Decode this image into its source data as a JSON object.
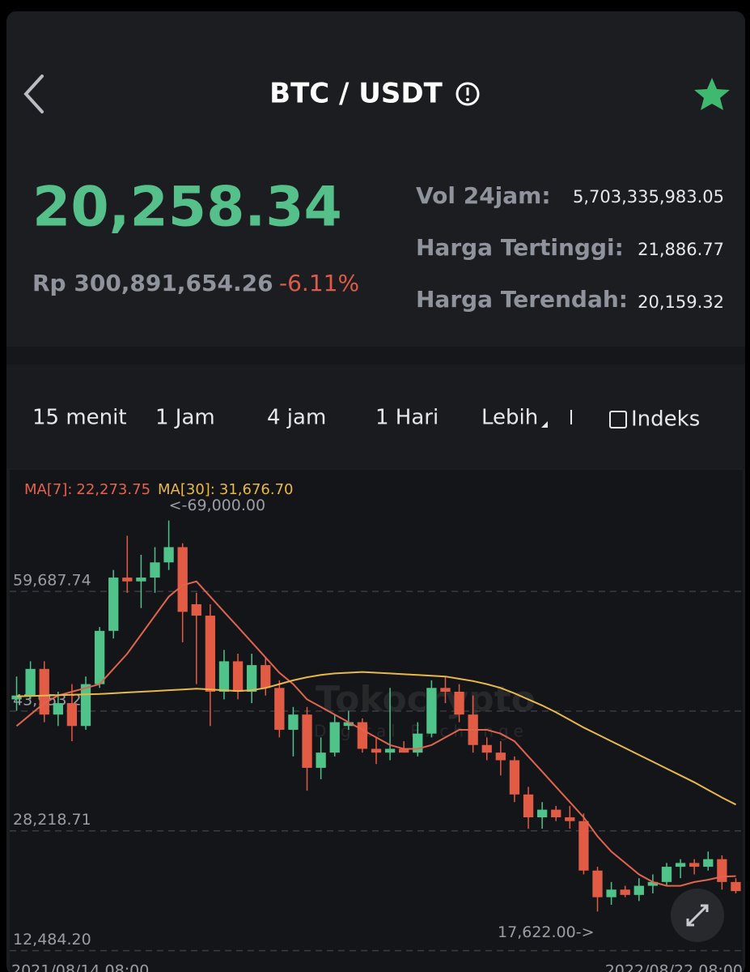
{
  "header": {
    "title": "BTC / USDT"
  },
  "ticker": {
    "price": "20,258.34",
    "fiat": "Rp 300,891,654.26",
    "change": "-6.11%",
    "stats": [
      {
        "label": "Vol 24jam:",
        "value": "5,703,335,983.05"
      },
      {
        "label": "Harga Tertinggi:",
        "value": "21,886.77"
      },
      {
        "label": "Harga Terendah:",
        "value": "20,159.32"
      }
    ]
  },
  "tabs": [
    "15 menit",
    "1 Jam",
    "4 jam",
    "1 Hari",
    "Lebih",
    "Indeks"
  ],
  "chart_data": {
    "type": "candlestick",
    "watermark": {
      "name": "Tokocrypto",
      "tagline": "Digital Exchange"
    },
    "up_color": "#4fc38a",
    "down_color": "#e25b45",
    "categories": [
      "2021/08/14 08:00",
      null,
      null,
      null,
      null,
      null,
      null,
      null,
      null,
      null,
      null,
      null,
      null,
      null,
      null,
      null,
      null,
      null,
      null,
      null,
      null,
      null,
      null,
      null,
      null,
      null,
      null,
      null,
      null,
      null,
      null,
      null,
      null,
      null,
      null,
      null,
      null,
      null,
      null,
      null,
      null,
      null,
      null,
      null,
      null,
      null,
      null,
      null,
      null,
      null,
      null,
      null,
      "2022/08/22 08:00"
    ],
    "open": [
      45500,
      46000,
      49500,
      43500,
      45000,
      42000,
      47500,
      54500,
      61500,
      61000,
      61500,
      63500,
      65500,
      58000,
      56500,
      46500,
      50500,
      46500,
      50000,
      47000,
      41500,
      43500,
      36500,
      38500,
      42000,
      42500,
      39000,
      38500,
      39000,
      38500,
      41000,
      47000,
      46500,
      43500,
      39500,
      38500,
      37500,
      33000,
      30000,
      31000,
      30000,
      29500,
      23000,
      19500,
      20500,
      19800,
      21000,
      21500,
      23500,
      24000,
      23500,
      24500,
      21500
    ],
    "high": [
      48500,
      50500,
      50500,
      46500,
      47500,
      48500,
      55000,
      62500,
      67000,
      64500,
      65500,
      69000,
      66000,
      59500,
      58000,
      52000,
      51500,
      51500,
      51000,
      48000,
      44500,
      44500,
      40500,
      43500,
      44000,
      43000,
      40500,
      47000,
      40000,
      42500,
      48000,
      48500,
      47500,
      46000,
      40500,
      40000,
      38000,
      34000,
      32000,
      31500,
      31500,
      30500,
      23500,
      21500,
      21000,
      22000,
      22500,
      24000,
      24500,
      24500,
      25500,
      25000,
      22000
    ],
    "low": [
      44000,
      45500,
      42500,
      42000,
      40000,
      41500,
      47000,
      53500,
      59500,
      57500,
      59500,
      62500,
      53000,
      47500,
      42000,
      45500,
      45500,
      45000,
      46000,
      40500,
      38000,
      33500,
      35000,
      38000,
      41500,
      38500,
      37000,
      37500,
      38500,
      38000,
      40500,
      45000,
      42500,
      38500,
      37500,
      35500,
      32000,
      28500,
      28500,
      29500,
      28500,
      22500,
      17622,
      18500,
      19500,
      19000,
      20000,
      21000,
      22000,
      22500,
      23000,
      20500,
      20000
    ],
    "close": [
      46000,
      49500,
      43500,
      45000,
      42000,
      47500,
      54500,
      61500,
      61000,
      61500,
      63500,
      65500,
      57000,
      56500,
      46500,
      50500,
      46500,
      50000,
      47000,
      41500,
      43500,
      36500,
      38500,
      42500,
      42500,
      39000,
      38500,
      39000,
      38500,
      41000,
      47000,
      46500,
      43500,
      39500,
      38500,
      37500,
      33000,
      30000,
      31000,
      30000,
      29500,
      23000,
      19500,
      20500,
      19800,
      21000,
      21500,
      23500,
      24000,
      23500,
      24500,
      21500,
      20300
    ],
    "series": [
      {
        "name": "MA[7]:",
        "color": "#e0644f",
        "last_label": "22,273.75",
        "values": [
          42000,
          43500,
          45000,
          46000,
          46500,
          47000,
          47500,
          49500,
          51500,
          54000,
          56500,
          59000,
          60500,
          61000,
          59000,
          57000,
          55000,
          53000,
          51000,
          49000,
          47500,
          45500,
          44500,
          43500,
          42500,
          41500,
          40500,
          39500,
          39000,
          39000,
          39500,
          40500,
          41500,
          41500,
          41500,
          41000,
          40000,
          38000,
          36000,
          34000,
          32000,
          30000,
          27500,
          25500,
          24000,
          22500,
          21500,
          21000,
          21000,
          21500,
          21800,
          22200,
          22273.75
        ]
      },
      {
        "name": "MA[30]:",
        "color": "#e8b84a",
        "last_label": "31,676.70",
        "values": [
          45900,
          45950,
          46000,
          46050,
          46100,
          46150,
          46200,
          46300,
          46400,
          46500,
          46600,
          46700,
          46800,
          46900,
          46800,
          46700,
          46600,
          46700,
          47000,
          47500,
          48000,
          48400,
          48700,
          48900,
          49000,
          49100,
          49000,
          48900,
          48800,
          48700,
          48600,
          48500,
          48200,
          47900,
          47500,
          47000,
          46300,
          45500,
          44700,
          43800,
          42800,
          41800,
          40900,
          40000,
          39100,
          38200,
          37300,
          36400,
          35500,
          34600,
          33600,
          32600,
          31676.7
        ]
      }
    ],
    "annotations": [
      "<-69,000.00",
      "17,622.00->"
    ],
    "ylim": [
      11800,
      74600
    ],
    "yticks": [
      {
        "value": 59687.74,
        "label": "59,687.74"
      },
      {
        "value": 43953.22,
        "label": "43,953.22"
      },
      {
        "value": 28218.71,
        "label": "28,218.71"
      },
      {
        "value": 12484.2,
        "label": "12,484.20"
      }
    ],
    "grid": true
  }
}
